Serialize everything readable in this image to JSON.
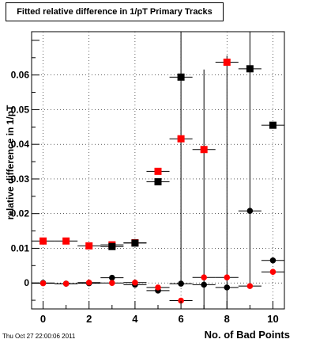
{
  "timestamp": "Thu Oct 27 22:00:06 2011",
  "chart_data": {
    "type": "scatter",
    "title": "Fitted relative difference in 1/pT Primary Tracks",
    "xlabel": "No. of Bad Points",
    "ylabel": "relative difference in 1/pT",
    "xlim": [
      -0.5,
      10.5
    ],
    "ylim": [
      -0.0075,
      0.0725
    ],
    "x_ticks": [
      0,
      2,
      4,
      6,
      8,
      10
    ],
    "y_ticks": [
      0,
      0.01,
      0.02,
      0.03,
      0.04,
      0.05,
      0.06
    ],
    "y_tick_labels": [
      "0",
      "0.01",
      "0.02",
      "0.03",
      "0.04",
      "0.05",
      "0.06"
    ],
    "grid": true,
    "series": [
      {
        "marker": "square",
        "color": "#ff0000",
        "points": [
          {
            "x": 0,
            "y": 0.0121,
            "xerr": 0.5,
            "yerr": 0.0003
          },
          {
            "x": 1,
            "y": 0.0121,
            "xerr": 0.5,
            "yerr": 0.0003
          },
          {
            "x": 2,
            "y": 0.0107,
            "xerr": 0.5,
            "yerr": 0.0003
          },
          {
            "x": 3,
            "y": 0.011,
            "xerr": 0.5,
            "yerr": 0.0003
          },
          {
            "x": 4,
            "y": 0.0116,
            "xerr": 0.5,
            "yerr": 0.0003
          },
          {
            "x": 5,
            "y": 0.0322,
            "xerr": 0.5,
            "yerr": 0.0005
          },
          {
            "x": 6,
            "y": 0.0416,
            "xerr": 0.5,
            "yerr": 0.0005
          },
          {
            "x": 7,
            "y": 0.0385,
            "xerr": 0.5,
            "yerr": 0.0005
          },
          {
            "x": 8,
            "y": 0.0637,
            "xerr": 0.5,
            "yerr": 0.0005
          }
        ]
      },
      {
        "marker": "square",
        "color": "#000000",
        "points": [
          {
            "x": 3,
            "y": 0.0105,
            "xerr": 0.5,
            "yerr": 0.0003
          },
          {
            "x": 4,
            "y": 0.0115,
            "xerr": 0.5,
            "yerr": 0.0003
          },
          {
            "x": 5,
            "y": 0.0292,
            "xerr": 0.5,
            "yerr": 0.0005
          },
          {
            "x": 6,
            "y": 0.0594,
            "xerr": 0.5,
            "yerr": 0.059
          },
          {
            "x": 9,
            "y": 0.0618,
            "xerr": 0.5,
            "yerr": 0.0618
          },
          {
            "x": 10,
            "y": 0.0455,
            "xerr": 0.5,
            "yerr": 0.0005
          }
        ]
      },
      {
        "marker": "circle",
        "color": "#000000",
        "points": [
          {
            "x": 0,
            "y": 0.0,
            "xerr": 0.5,
            "yerr": 0.0003
          },
          {
            "x": 1,
            "y": -0.0002,
            "xerr": 0.5,
            "yerr": 0.0003
          },
          {
            "x": 2,
            "y": -0.0001,
            "xerr": 0.5,
            "yerr": 0.0003
          },
          {
            "x": 3,
            "y": 0.0015,
            "xerr": 0.5,
            "yerr": 0.0003
          },
          {
            "x": 4,
            "y": -0.0005,
            "xerr": 0.5,
            "yerr": 0.0003
          },
          {
            "x": 5,
            "y": -0.0022,
            "xerr": 0.5,
            "yerr": 0.0005
          },
          {
            "x": 6,
            "y": -0.0002,
            "xerr": 0.5,
            "yerr": 0.0005
          },
          {
            "x": 7,
            "y": -0.0005,
            "xerr": 0.5,
            "yerr": 0.0005
          },
          {
            "x": 8,
            "y": -0.0013,
            "xerr": 0.5,
            "yerr": 0.0005
          },
          {
            "x": 9,
            "y": 0.0208,
            "xerr": 0.5,
            "yerr": 0.0005
          },
          {
            "x": 10,
            "y": 0.0065,
            "xerr": 0.5,
            "yerr": 0.0005
          }
        ]
      },
      {
        "marker": "circle",
        "color": "#ff0000",
        "points": [
          {
            "x": 0,
            "y": -0.0001,
            "xerr": 0.5,
            "yerr": 0.0003
          },
          {
            "x": 1,
            "y": -0.0002,
            "xerr": 0.5,
            "yerr": 0.0003
          },
          {
            "x": 2,
            "y": 0.0001,
            "xerr": 0.5,
            "yerr": 0.0003
          },
          {
            "x": 3,
            "y": 0.0,
            "xerr": 0.5,
            "yerr": 0.0003
          },
          {
            "x": 4,
            "y": 0.0001,
            "xerr": 0.5,
            "yerr": 0.0003
          },
          {
            "x": 5,
            "y": -0.0013,
            "xerr": 0.5,
            "yerr": 0.0005
          },
          {
            "x": 6,
            "y": -0.0051,
            "xerr": 0.5,
            "yerr": 0.0005
          },
          {
            "x": 7,
            "y": 0.0016,
            "xerr": 0.5,
            "yerr": 0.06
          },
          {
            "x": 8,
            "y": 0.0016,
            "xerr": 0.5,
            "yerr": 0.064
          },
          {
            "x": 9,
            "y": -0.0009,
            "xerr": 0.5,
            "yerr": 0.0005
          },
          {
            "x": 10,
            "y": 0.0032,
            "xerr": 0.5,
            "yerr": 0.0005
          }
        ]
      }
    ]
  }
}
